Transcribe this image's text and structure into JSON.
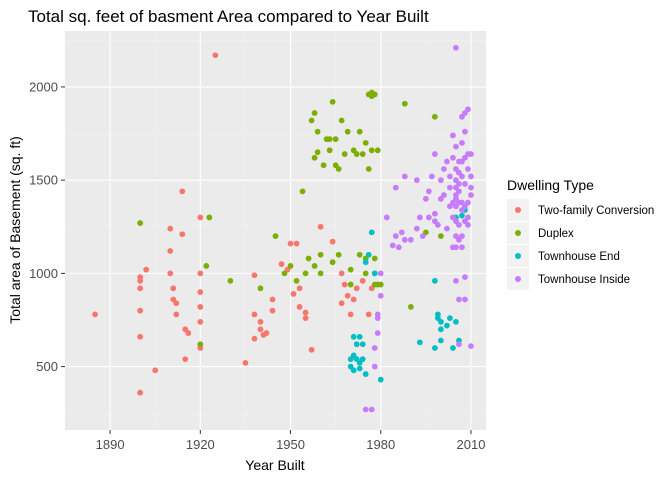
{
  "chart_data": {
    "type": "scatter",
    "title": "Total sq. feet of basment Area compared to Year Built",
    "xlabel": "Year Built",
    "ylabel": "Total area of Basement (sq. ft)",
    "xlim": [
      1875,
      2015
    ],
    "ylim": [
      160,
      2300
    ],
    "xticks": [
      1890,
      1920,
      1950,
      1980,
      2010
    ],
    "yticks": [
      500,
      1000,
      1500,
      2000
    ],
    "grid": true,
    "legend": {
      "title": "Dwelling Type",
      "position": "right"
    },
    "series": [
      {
        "name": "Two-family Conversion",
        "color": "#F8766D",
        "points": [
          [
            1885,
            780
          ],
          [
            1900,
            360
          ],
          [
            1900,
            660
          ],
          [
            1900,
            800
          ],
          [
            1900,
            920
          ],
          [
            1900,
            960
          ],
          [
            1900,
            980
          ],
          [
            1902,
            1020
          ],
          [
            1905,
            480
          ],
          [
            1910,
            1000
          ],
          [
            1910,
            1120
          ],
          [
            1910,
            1240
          ],
          [
            1911,
            860
          ],
          [
            1911,
            920
          ],
          [
            1912,
            840
          ],
          [
            1912,
            780
          ],
          [
            1914,
            1440
          ],
          [
            1914,
            1210
          ],
          [
            1915,
            540
          ],
          [
            1915,
            700
          ],
          [
            1916,
            680
          ],
          [
            1920,
            1300
          ],
          [
            1920,
            1000
          ],
          [
            1920,
            900
          ],
          [
            1920,
            820
          ],
          [
            1920,
            740
          ],
          [
            1920,
            600
          ],
          [
            1925,
            2170
          ],
          [
            1935,
            520
          ],
          [
            1938,
            990
          ],
          [
            1938,
            780
          ],
          [
            1938,
            650
          ],
          [
            1940,
            700
          ],
          [
            1940,
            740
          ],
          [
            1941,
            670
          ],
          [
            1942,
            680
          ],
          [
            1944,
            800
          ],
          [
            1944,
            860
          ],
          [
            1947,
            1050
          ],
          [
            1949,
            1020
          ],
          [
            1950,
            1160
          ],
          [
            1951,
            890
          ],
          [
            1952,
            1160
          ],
          [
            1953,
            920
          ],
          [
            1953,
            820
          ],
          [
            1955,
            790
          ],
          [
            1955,
            760
          ],
          [
            1957,
            590
          ],
          [
            1960,
            1250
          ],
          [
            1964,
            1170
          ],
          [
            1967,
            1000
          ],
          [
            1967,
            840
          ],
          [
            1968,
            940
          ],
          [
            1969,
            880
          ],
          [
            1970,
            780
          ],
          [
            1971,
            860
          ],
          [
            1972,
            920
          ],
          [
            1974,
            960
          ],
          [
            1976,
            780
          ],
          [
            1977,
            920
          ]
        ]
      },
      {
        "name": "Duplex",
        "color": "#7CAE00",
        "points": [
          [
            1900,
            1270
          ],
          [
            1920,
            620
          ],
          [
            1922,
            1040
          ],
          [
            1923,
            1300
          ],
          [
            1930,
            960
          ],
          [
            1940,
            920
          ],
          [
            1945,
            1200
          ],
          [
            1948,
            1000
          ],
          [
            1950,
            1040
          ],
          [
            1952,
            960
          ],
          [
            1954,
            1440
          ],
          [
            1955,
            1000
          ],
          [
            1956,
            1080
          ],
          [
            1957,
            1820
          ],
          [
            1958,
            1860
          ],
          [
            1958,
            1620
          ],
          [
            1958,
            1040
          ],
          [
            1959,
            1760
          ],
          [
            1959,
            1650
          ],
          [
            1960,
            1000
          ],
          [
            1960,
            1100
          ],
          [
            1961,
            1580
          ],
          [
            1962,
            1720
          ],
          [
            1963,
            1720
          ],
          [
            1963,
            1660
          ],
          [
            1964,
            1920
          ],
          [
            1964,
            1060
          ],
          [
            1965,
            1720
          ],
          [
            1965,
            1580
          ],
          [
            1966,
            1560
          ],
          [
            1966,
            1100
          ],
          [
            1967,
            1820
          ],
          [
            1968,
            1640
          ],
          [
            1969,
            1760
          ],
          [
            1970,
            1020
          ],
          [
            1970,
            940
          ],
          [
            1971,
            1660
          ],
          [
            1972,
            1640
          ],
          [
            1973,
            1760
          ],
          [
            1973,
            1100
          ],
          [
            1974,
            1640
          ],
          [
            1975,
            1700
          ],
          [
            1975,
            1080
          ],
          [
            1975,
            1000
          ],
          [
            1976,
            1960
          ],
          [
            1976,
            1560
          ],
          [
            1977,
            1950
          ],
          [
            1977,
            1970
          ],
          [
            1977,
            1660
          ],
          [
            1978,
            1960
          ],
          [
            1978,
            1080
          ],
          [
            1978,
            1000
          ],
          [
            1978,
            940
          ],
          [
            1979,
            1660
          ],
          [
            1979,
            940
          ],
          [
            1980,
            940
          ],
          [
            1988,
            1910
          ],
          [
            1990,
            820
          ],
          [
            1995,
            1220
          ],
          [
            1998,
            1840
          ],
          [
            2000,
            1200
          ]
        ]
      },
      {
        "name": "Townhouse End",
        "color": "#00BFC4",
        "points": [
          [
            1970,
            540
          ],
          [
            1970,
            500
          ],
          [
            1971,
            660
          ],
          [
            1971,
            560
          ],
          [
            1971,
            480
          ],
          [
            1972,
            620
          ],
          [
            1972,
            540
          ],
          [
            1973,
            660
          ],
          [
            1973,
            520
          ],
          [
            1973,
            490
          ],
          [
            1974,
            620
          ],
          [
            1974,
            540
          ],
          [
            1975,
            1060
          ],
          [
            1975,
            460
          ],
          [
            1976,
            1100
          ],
          [
            1977,
            1220
          ],
          [
            1978,
            1000
          ],
          [
            1980,
            430
          ],
          [
            1993,
            630
          ],
          [
            1998,
            960
          ],
          [
            1998,
            600
          ],
          [
            1999,
            780
          ],
          [
            1999,
            760
          ],
          [
            2000,
            740
          ],
          [
            2000,
            700
          ],
          [
            2000,
            640
          ],
          [
            2002,
            720
          ],
          [
            2003,
            760
          ],
          [
            2004,
            600
          ],
          [
            2005,
            1300
          ],
          [
            2005,
            740
          ],
          [
            2006,
            640
          ],
          [
            2007,
            1310
          ],
          [
            2008,
            1340
          ]
        ]
      },
      {
        "name": "Townhouse Inside",
        "color": "#C77CFF",
        "points": [
          [
            1975,
            270
          ],
          [
            1977,
            270
          ],
          [
            1978,
            500
          ],
          [
            1978,
            600
          ],
          [
            1979,
            680
          ],
          [
            1979,
            760
          ],
          [
            1979,
            780
          ],
          [
            1980,
            880
          ],
          [
            1980,
            1000
          ],
          [
            1982,
            1300
          ],
          [
            1984,
            1150
          ],
          [
            1985,
            1460
          ],
          [
            1985,
            1200
          ],
          [
            1986,
            1140
          ],
          [
            1987,
            1220
          ],
          [
            1988,
            1520
          ],
          [
            1988,
            1180
          ],
          [
            1990,
            1180
          ],
          [
            1992,
            1500
          ],
          [
            1992,
            1240
          ],
          [
            1993,
            1300
          ],
          [
            1994,
            1200
          ],
          [
            1995,
            1400
          ],
          [
            1996,
            1440
          ],
          [
            1996,
            1300
          ],
          [
            1997,
            1520
          ],
          [
            1998,
            1640
          ],
          [
            1998,
            1320
          ],
          [
            1998,
            1280
          ],
          [
            1999,
            1260
          ],
          [
            2000,
            1400
          ],
          [
            2000,
            1500
          ],
          [
            2001,
            1560
          ],
          [
            2001,
            1420
          ],
          [
            2002,
            1600
          ],
          [
            2002,
            1240
          ],
          [
            2003,
            1520
          ],
          [
            2003,
            1460
          ],
          [
            2003,
            1360
          ],
          [
            2004,
            1740
          ],
          [
            2004,
            1620
          ],
          [
            2004,
            1380
          ],
          [
            2004,
            1300
          ],
          [
            2004,
            1140
          ],
          [
            2005,
            2210
          ],
          [
            2005,
            1680
          ],
          [
            2005,
            1560
          ],
          [
            2005,
            1500
          ],
          [
            2005,
            1460
          ],
          [
            2005,
            1420
          ],
          [
            2005,
            1400
          ],
          [
            2005,
            1360
          ],
          [
            2005,
            1280
          ],
          [
            2005,
            1200
          ],
          [
            2005,
            1140
          ],
          [
            2005,
            960
          ],
          [
            2006,
            1600
          ],
          [
            2006,
            1540
          ],
          [
            2006,
            1480
          ],
          [
            2006,
            1440
          ],
          [
            2006,
            1380
          ],
          [
            2006,
            1260
          ],
          [
            2006,
            1180
          ],
          [
            2006,
            860
          ],
          [
            2006,
            620
          ],
          [
            2007,
            1840
          ],
          [
            2007,
            1700
          ],
          [
            2007,
            1600
          ],
          [
            2007,
            1520
          ],
          [
            2007,
            1380
          ],
          [
            2007,
            1340
          ],
          [
            2007,
            1200
          ],
          [
            2007,
            1140
          ],
          [
            2008,
            1860
          ],
          [
            2008,
            1760
          ],
          [
            2008,
            1620
          ],
          [
            2008,
            1480
          ],
          [
            2008,
            1360
          ],
          [
            2008,
            1280
          ],
          [
            2008,
            980
          ],
          [
            2008,
            860
          ],
          [
            2009,
            1880
          ],
          [
            2009,
            1640
          ],
          [
            2009,
            1560
          ],
          [
            2009,
            1380
          ],
          [
            2009,
            1300
          ],
          [
            2009,
            1260
          ],
          [
            2010,
            1640
          ],
          [
            2010,
            1520
          ],
          [
            2010,
            1460
          ],
          [
            2010,
            1420
          ],
          [
            2010,
            610
          ]
        ]
      }
    ]
  }
}
